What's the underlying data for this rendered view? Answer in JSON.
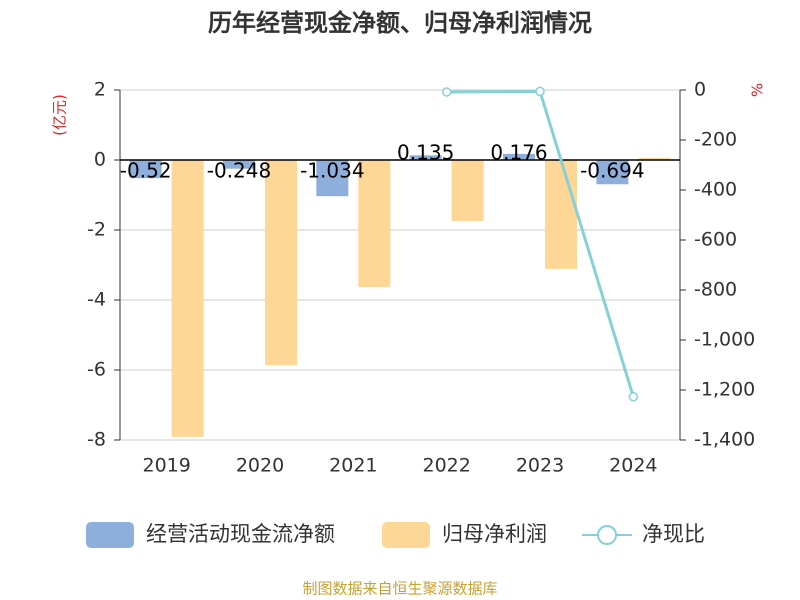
{
  "chart_data": {
    "type": "bar",
    "title": "历年经营现金净额、归母净利润情况",
    "y_label": "(亿元)",
    "y2_label": "%",
    "footer": "制图数据来自恒生聚源数据库",
    "categories": [
      "2019",
      "2020",
      "2021",
      "2022",
      "2023",
      "2024"
    ],
    "series": [
      {
        "name": "经营活动现金流净额",
        "color": "#8eaedb",
        "values": [
          -0.52,
          -0.248,
          -1.034,
          0.135,
          0.176,
          -0.694
        ]
      },
      {
        "name": "归母净利润",
        "color": "#fed695",
        "values": [
          -7.91,
          -5.86,
          -3.63,
          -1.74,
          -3.11,
          0.057
        ]
      },
      {
        "name": "净现比",
        "color": "#86d1d6",
        "type": "line",
        "axis": "y2",
        "values": [
          null,
          null,
          null,
          -7.76,
          -5.66,
          -1227
        ]
      }
    ],
    "ylim": [
      -8,
      2
    ],
    "yticks": [
      -8,
      -6,
      -4,
      -2,
      0,
      2
    ],
    "y2lim": [
      -1400,
      0
    ],
    "y2ticks": [
      {
        "value": -1400,
        "label": "-1,400"
      },
      {
        "value": -1200,
        "label": "-1,200"
      },
      {
        "value": -1000,
        "label": "-1,000"
      },
      -800,
      -600,
      -400,
      -200,
      0
    ],
    "grid": true
  }
}
